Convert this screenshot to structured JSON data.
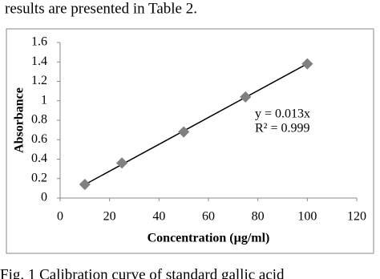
{
  "top_text": "results are presented in Table 2.",
  "bottom_text": "Fig. 1 Calibration curve of standard gallic acid",
  "chart_data": {
    "type": "scatter",
    "xlabel": "Concentration (µg/ml)",
    "ylabel": "Absorbance",
    "x": [
      10,
      25,
      50,
      75,
      100
    ],
    "values": [
      0.14,
      0.36,
      0.68,
      1.04,
      1.38
    ],
    "color": "#808080",
    "xlim": [
      0,
      120
    ],
    "xticks": [
      0,
      20,
      40,
      60,
      80,
      100,
      120
    ],
    "ylim": [
      0,
      1.6
    ],
    "yticks": [
      0,
      0.2,
      0.4,
      0.6,
      0.8,
      1,
      1.2,
      1.4,
      1.6
    ],
    "annotations": [
      "y = 0.013x",
      "R² = 0.999"
    ]
  }
}
